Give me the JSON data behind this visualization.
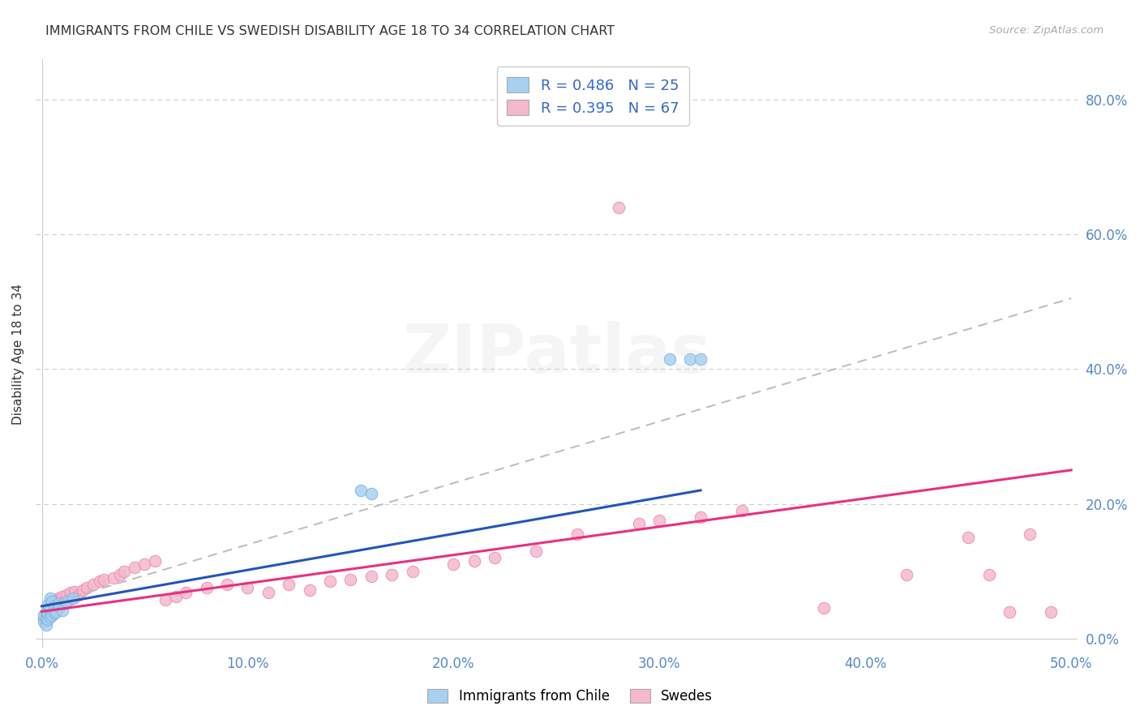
{
  "title": "IMMIGRANTS FROM CHILE VS SWEDISH DISABILITY AGE 18 TO 34 CORRELATION CHART",
  "source": "Source: ZipAtlas.com",
  "ylabel": "Disability Age 18 to 34",
  "xlim": [
    -0.003,
    0.503
  ],
  "ylim": [
    -0.015,
    0.86
  ],
  "xticks": [
    0.0,
    0.1,
    0.2,
    0.3,
    0.4,
    0.5
  ],
  "xticklabels": [
    "0.0%",
    "10.0%",
    "20.0%",
    "30.0%",
    "40.0%",
    "50.0%"
  ],
  "yticks_right": [
    0.0,
    0.2,
    0.4,
    0.6,
    0.8
  ],
  "yticklabels_right": [
    "0.0%",
    "20.0%",
    "40.0%",
    "60.0%",
    "80.0%"
  ],
  "chile_color": "#a8d0f0",
  "chile_edge": "#7ab0e0",
  "swedes_color": "#f5b8ce",
  "swedes_edge": "#e888aa",
  "blue_line_color": "#2255bb",
  "pink_line_color": "#e83080",
  "dashed_line_color": "#bbbbbb",
  "R_chile": 0.486,
  "N_chile": 25,
  "R_swedes": 0.395,
  "N_swedes": 67,
  "legend_label_chile": "Immigrants from Chile",
  "legend_label_swedes": "Swedes",
  "watermark": "ZIPatlas",
  "chile_x": [
    0.001,
    0.001,
    0.002,
    0.002,
    0.002,
    0.003,
    0.003,
    0.003,
    0.004,
    0.004,
    0.004,
    0.005,
    0.005,
    0.006,
    0.006,
    0.007,
    0.008,
    0.01,
    0.012,
    0.015,
    0.155,
    0.16,
    0.305,
    0.315,
    0.32
  ],
  "chile_y": [
    0.025,
    0.035,
    0.02,
    0.03,
    0.04,
    0.028,
    0.038,
    0.05,
    0.032,
    0.045,
    0.06,
    0.035,
    0.055,
    0.038,
    0.048,
    0.04,
    0.052,
    0.042,
    0.055,
    0.06,
    0.22,
    0.215,
    0.415,
    0.415,
    0.415
  ],
  "swedes_x": [
    0.001,
    0.002,
    0.002,
    0.003,
    0.003,
    0.004,
    0.004,
    0.005,
    0.005,
    0.006,
    0.006,
    0.007,
    0.007,
    0.008,
    0.008,
    0.009,
    0.01,
    0.01,
    0.011,
    0.012,
    0.013,
    0.014,
    0.015,
    0.016,
    0.018,
    0.02,
    0.022,
    0.025,
    0.028,
    0.03,
    0.035,
    0.038,
    0.04,
    0.045,
    0.05,
    0.055,
    0.06,
    0.065,
    0.07,
    0.08,
    0.09,
    0.1,
    0.11,
    0.12,
    0.13,
    0.14,
    0.15,
    0.16,
    0.17,
    0.18,
    0.2,
    0.21,
    0.22,
    0.24,
    0.26,
    0.28,
    0.29,
    0.3,
    0.32,
    0.34,
    0.38,
    0.42,
    0.45,
    0.46,
    0.47,
    0.48,
    0.49
  ],
  "swedes_y": [
    0.03,
    0.028,
    0.038,
    0.032,
    0.042,
    0.035,
    0.048,
    0.038,
    0.052,
    0.04,
    0.055,
    0.042,
    0.058,
    0.045,
    0.06,
    0.048,
    0.05,
    0.062,
    0.055,
    0.065,
    0.058,
    0.068,
    0.06,
    0.07,
    0.065,
    0.072,
    0.075,
    0.08,
    0.085,
    0.088,
    0.09,
    0.095,
    0.1,
    0.105,
    0.11,
    0.115,
    0.058,
    0.062,
    0.068,
    0.075,
    0.08,
    0.075,
    0.068,
    0.08,
    0.072,
    0.085,
    0.088,
    0.092,
    0.095,
    0.1,
    0.11,
    0.115,
    0.12,
    0.13,
    0.155,
    0.64,
    0.17,
    0.175,
    0.18,
    0.19,
    0.045,
    0.095,
    0.15,
    0.095,
    0.04,
    0.155,
    0.04
  ],
  "blue_line_x": [
    0.0,
    0.32
  ],
  "blue_line_y": [
    0.048,
    0.22
  ],
  "pink_line_x": [
    0.0,
    0.5
  ],
  "pink_line_y": [
    0.04,
    0.25
  ],
  "dash_line_x": [
    0.0,
    0.5
  ],
  "dash_line_y": [
    0.048,
    0.505
  ]
}
